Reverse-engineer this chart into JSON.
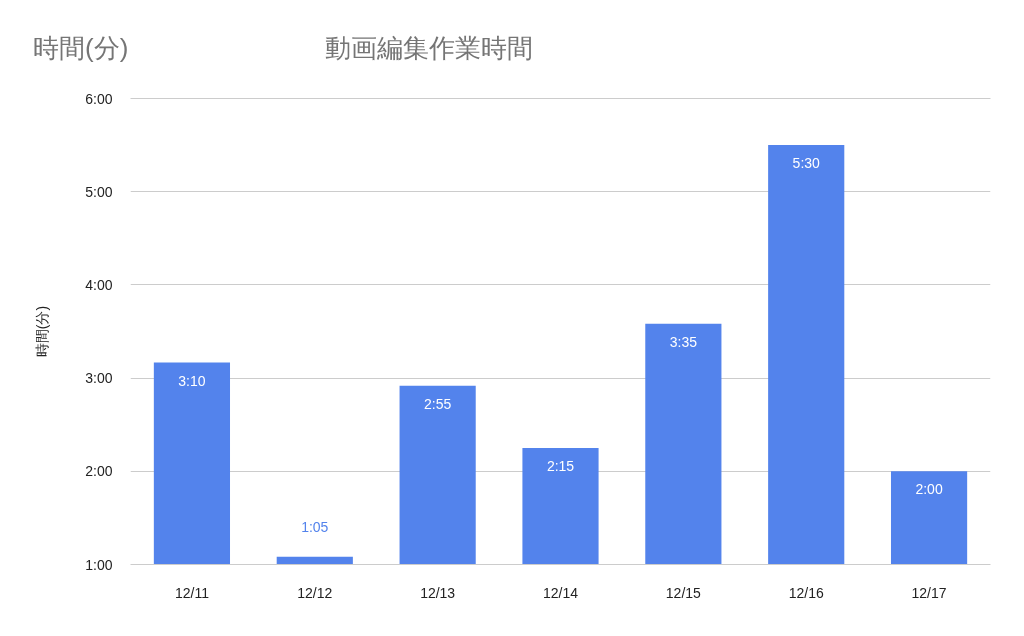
{
  "chart_data": {
    "type": "bar",
    "title": "動画編集作業時間",
    "annotations": [
      "時間(分)"
    ],
    "ylabel": "時間(分)",
    "categories": [
      "12/11",
      "12/12",
      "12/13",
      "12/14",
      "12/15",
      "12/16",
      "12/17"
    ],
    "values": [
      3.167,
      1.083,
      2.917,
      2.25,
      3.583,
      5.5,
      2
    ],
    "value_labels": [
      "3:10",
      "1:05",
      "2:55",
      "2:15",
      "3:35",
      "5:30",
      "2:00"
    ],
    "color": "#5383ec",
    "ylim": [
      1,
      6
    ],
    "yticks": [
      {
        "value": 1,
        "label": "1:00"
      },
      {
        "value": 2,
        "label": "2:00"
      },
      {
        "value": 3,
        "label": "3:00"
      },
      {
        "value": 4,
        "label": "4:00"
      },
      {
        "value": 5,
        "label": "5:00"
      },
      {
        "value": 6,
        "label": "6:00"
      }
    ],
    "grid": "y"
  }
}
